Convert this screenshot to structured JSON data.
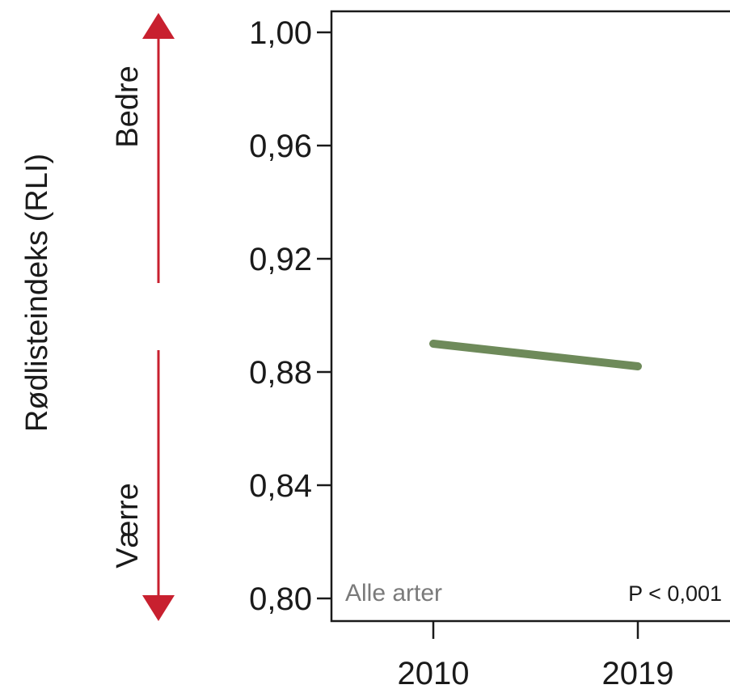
{
  "chart_data": {
    "type": "line",
    "title": "",
    "xlabel": "",
    "ylabel": "Rødlisteindeks (RLI)",
    "x": [
      2010,
      2019
    ],
    "x_tick_labels": [
      "2010",
      "2019"
    ],
    "y_ticks": [
      1.0,
      0.96,
      0.92,
      0.88,
      0.84,
      0.8
    ],
    "y_tick_labels": [
      "1,00",
      "0,96",
      "0,92",
      "0,88",
      "0,84",
      "0,80"
    ],
    "ylim": [
      0.8,
      1.0
    ],
    "grid": false,
    "series": [
      {
        "values": [
          0.89,
          0.882
        ],
        "color": "#6e8a5a"
      }
    ],
    "annotations": {
      "group_label": "Alle arter",
      "p_value": "P < 0,001"
    },
    "direction_arrow": {
      "up_label": "Bedre",
      "down_label": "Værre",
      "color": "#c8202f"
    },
    "colors": {
      "axis": "#1a1a1a",
      "group_label": "#7a7a7a",
      "p_value": "#1a1a1a"
    }
  }
}
